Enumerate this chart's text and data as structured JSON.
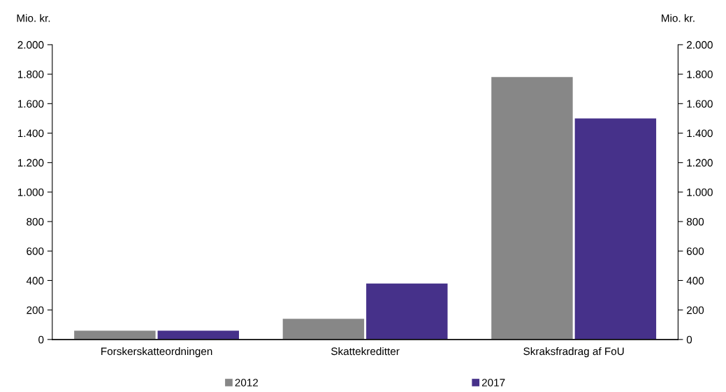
{
  "chart_data": {
    "type": "bar",
    "ylabel": "Mio. kr.",
    "y2label": "Mio. kr.",
    "categories": [
      "Forskerskatteordningen",
      "Skattekreditter",
      "Skraksfradrag af FoU"
    ],
    "series": [
      {
        "name": "2012",
        "color": "#878787",
        "values": [
          60,
          140,
          1780
        ]
      },
      {
        "name": "2017",
        "color": "#46318a",
        "values": [
          60,
          380,
          1500
        ]
      }
    ],
    "ylim": [
      0,
      2000
    ],
    "yticks": [
      0,
      200,
      400,
      600,
      800,
      {
        "value": 1000,
        "label": "1.000"
      },
      {
        "value": 1200,
        "label": "1.200"
      },
      {
        "value": 1400,
        "label": "1.400"
      },
      {
        "value": 1600,
        "label": "1.600"
      },
      {
        "value": 1800,
        "label": "1.800"
      },
      {
        "value": 2000,
        "label": "2.000"
      }
    ],
    "y2lim": [
      0,
      2000
    ],
    "y2ticks": [
      0,
      200,
      400,
      600,
      800,
      {
        "value": 1000,
        "label": "1.000"
      },
      {
        "value": 1200,
        "label": "1.200"
      },
      {
        "value": 1400,
        "label": "1.400"
      },
      {
        "value": 1600,
        "label": "1.600"
      },
      {
        "value": 1800,
        "label": "1.800"
      },
      {
        "value": 2000,
        "label": "2.000"
      }
    ],
    "grid": false,
    "legend": "bottom"
  }
}
